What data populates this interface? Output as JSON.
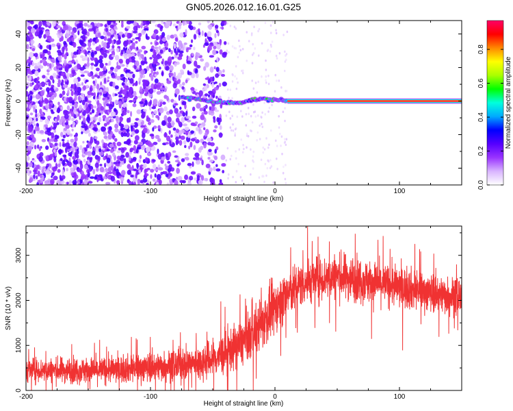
{
  "chart_data": [
    {
      "type": "heatmap",
      "title": "GN05.2026.012.16.01.G25",
      "xlabel": "Height of straight line (km)",
      "ylabel": "Frequency (Hz)",
      "xlim": [
        -200,
        150
      ],
      "ylim": [
        -50,
        48
      ],
      "xticks": [
        -200,
        -100,
        0,
        100
      ],
      "yticks": [
        -40,
        -20,
        0,
        20,
        40
      ],
      "colorbar": {
        "label": "Normalized spectral amplitude",
        "range": [
          0,
          0.97
        ],
        "ticks": [
          0.0,
          0.2,
          0.4,
          0.6,
          0.8
        ],
        "colors": [
          "#ffffff",
          "#d8b4ff",
          "#9933ff",
          "#5500ff",
          "#0000ff",
          "#00aaff",
          "#00ffdd",
          "#00ff00",
          "#aaff00",
          "#ffff00",
          "#ff8800",
          "#ff0000",
          "#ff0066"
        ]
      },
      "features": [
        {
          "name": "noise_scatter",
          "x_range": [
            -200,
            -40
          ],
          "y_range": [
            -50,
            48
          ],
          "amplitude": 0.2
        },
        {
          "name": "scattered_points",
          "x_range": [
            -40,
            10
          ],
          "y_range": [
            -50,
            48
          ],
          "amplitude": 0.05
        },
        {
          "name": "signal_onset_track",
          "x": [
            -75,
            -60,
            -45,
            -30,
            -15,
            0,
            10
          ],
          "y": [
            2,
            1,
            -1,
            -1,
            1,
            1,
            0
          ],
          "amplitude": 0.5
        },
        {
          "name": "carrier_line",
          "x_range": [
            10,
            150
          ],
          "y": 0,
          "amplitude": 0.97
        }
      ]
    },
    {
      "type": "line",
      "xlabel": "Height of straight line (km)",
      "ylabel": "SNR (10 * v/v)",
      "xlim": [
        -200,
        150
      ],
      "ylim": [
        0,
        3650
      ],
      "xticks": [
        -200,
        -100,
        0,
        100
      ],
      "yticks": [
        0,
        1000,
        2000,
        3000
      ],
      "series": [
        {
          "name": "SNR",
          "color": "#f03232",
          "x": [
            -200,
            -180,
            -160,
            -140,
            -120,
            -100,
            -80,
            -60,
            -50,
            -40,
            -30,
            -20,
            -10,
            0,
            10,
            20,
            30,
            40,
            50,
            60,
            70,
            80,
            90,
            100,
            110,
            120,
            130,
            140,
            150
          ],
          "mean": [
            450,
            450,
            450,
            450,
            480,
            520,
            560,
            620,
            700,
            820,
            1000,
            1200,
            1500,
            1850,
            2150,
            2350,
            2450,
            2500,
            2550,
            2500,
            2450,
            2400,
            2350,
            2300,
            2250,
            2200,
            2150,
            2100,
            2100
          ],
          "spread": [
            350,
            350,
            380,
            380,
            400,
            420,
            450,
            500,
            550,
            600,
            650,
            700,
            750,
            750,
            700,
            650,
            650,
            650,
            650,
            650,
            650,
            600,
            600,
            600,
            600,
            550,
            550,
            550,
            550
          ]
        }
      ]
    }
  ]
}
